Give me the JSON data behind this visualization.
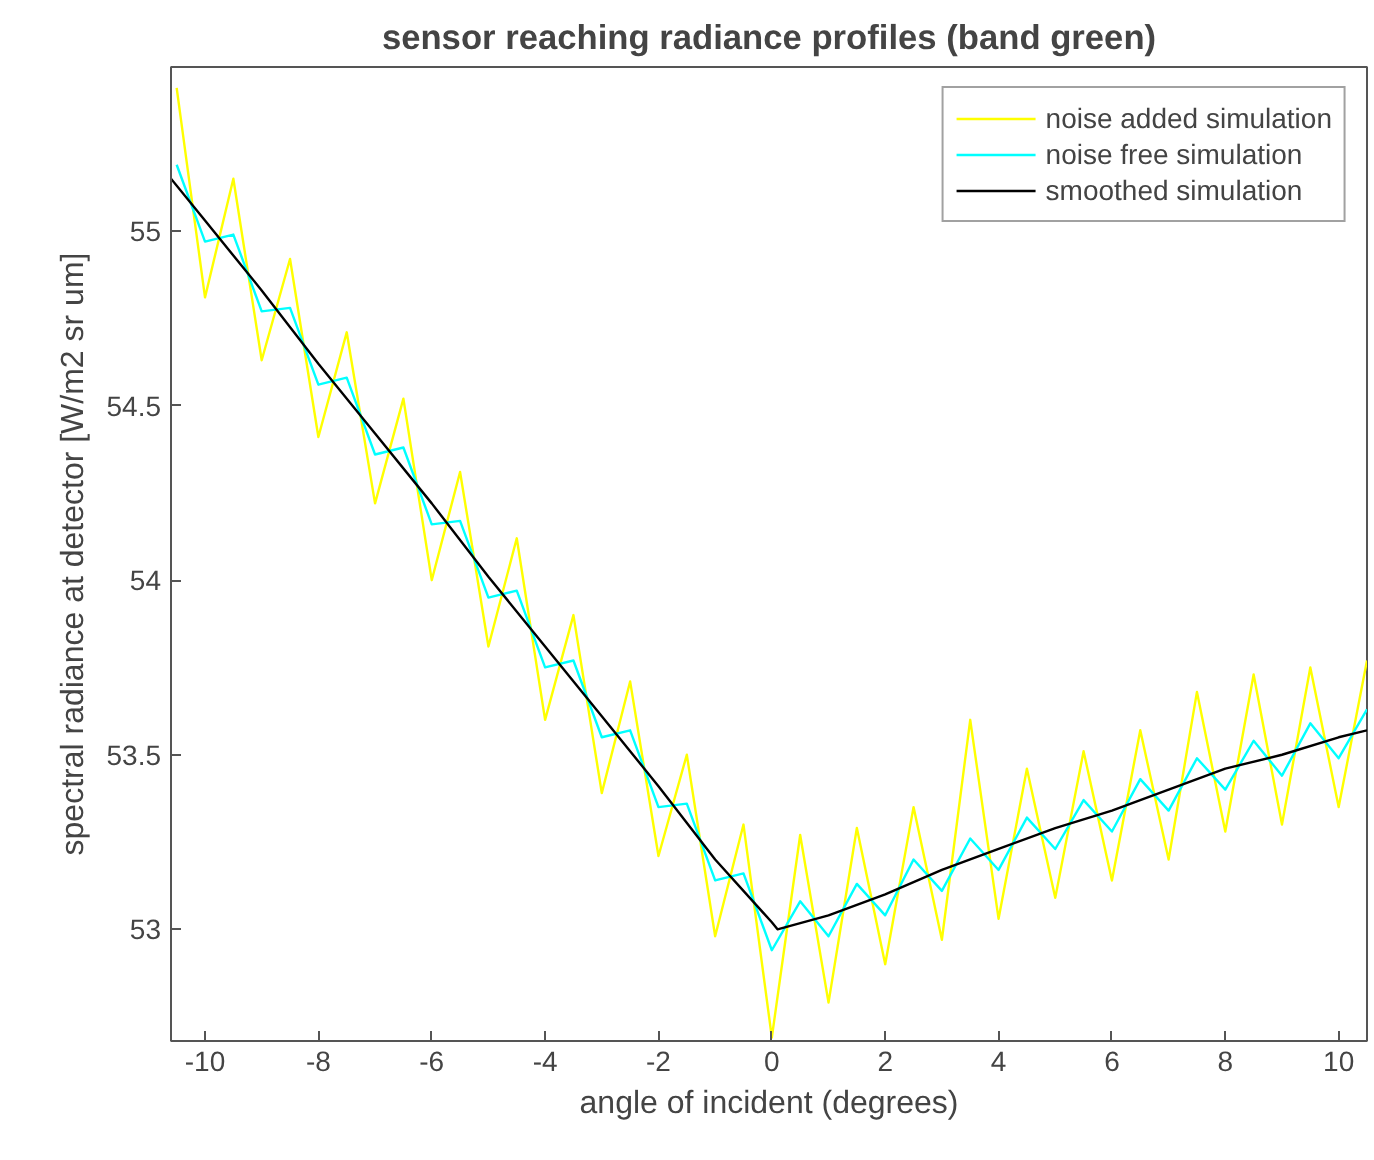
{
  "chart_data": {
    "type": "line",
    "title": "sensor reaching radiance profiles (band green)",
    "xlabel": "angle of incident (degrees)",
    "ylabel": "spectral radiance at detector [W/m2 sr um]",
    "xlim": [
      -10.6,
      10.5
    ],
    "ylim": [
      52.68,
      55.47
    ],
    "xticks": [
      -10,
      -8,
      -6,
      -4,
      -2,
      0,
      2,
      4,
      6,
      8,
      10
    ],
    "yticks": [
      53,
      53.5,
      54,
      54.5,
      55
    ],
    "grid": false,
    "legend": "top right",
    "series": [
      {
        "name": "noise added simulation",
        "color": "#ffff00",
        "x": [
          -10.5,
          -10,
          -9.5,
          -9,
          -8.5,
          -8,
          -7.5,
          -7,
          -6.5,
          -6,
          -5.5,
          -5,
          -4.5,
          -4,
          -3.5,
          -3,
          -2.5,
          -2,
          -1.5,
          -1,
          -0.5,
          0,
          0.5,
          1,
          1.5,
          2,
          2.5,
          3,
          3.5,
          4,
          4.5,
          5,
          5.5,
          6,
          6.5,
          7,
          7.5,
          8,
          8.5,
          9,
          9.5,
          10,
          10.5
        ],
        "values": [
          55.41,
          54.81,
          55.15,
          54.63,
          54.92,
          54.41,
          54.71,
          54.22,
          54.52,
          54.0,
          54.31,
          53.81,
          54.12,
          53.6,
          53.9,
          53.39,
          53.71,
          53.21,
          53.5,
          52.98,
          53.3,
          52.69,
          53.27,
          52.79,
          53.29,
          52.9,
          53.35,
          52.97,
          53.6,
          53.03,
          53.46,
          53.09,
          53.51,
          53.14,
          53.57,
          53.2,
          53.68,
          53.28,
          53.73,
          53.3,
          53.75,
          53.35,
          53.77
        ]
      },
      {
        "name": "noise free simulation",
        "color": "#00ffff",
        "x": [
          -10.5,
          -10,
          -9.5,
          -9,
          -8.5,
          -8,
          -7.5,
          -7,
          -6.5,
          -6,
          -5.5,
          -5,
          -4.5,
          -4,
          -3.5,
          -3,
          -2.5,
          -2,
          -1.5,
          -1,
          -0.5,
          0,
          0.5,
          1,
          1.5,
          2,
          2.5,
          3,
          3.5,
          4,
          4.5,
          5,
          5.5,
          6,
          6.5,
          7,
          7.5,
          8,
          8.5,
          9,
          9.5,
          10,
          10.5
        ],
        "values": [
          55.19,
          54.97,
          54.99,
          54.77,
          54.78,
          54.56,
          54.58,
          54.36,
          54.38,
          54.16,
          54.17,
          53.95,
          53.97,
          53.75,
          53.77,
          53.55,
          53.57,
          53.35,
          53.36,
          53.14,
          53.16,
          52.94,
          53.08,
          52.98,
          53.13,
          53.04,
          53.2,
          53.11,
          53.26,
          53.17,
          53.32,
          53.23,
          53.37,
          53.28,
          53.43,
          53.34,
          53.49,
          53.4,
          53.54,
          53.44,
          53.59,
          53.49,
          53.63
        ]
      },
      {
        "name": "smoothed simulation",
        "color": "#000000",
        "x": [
          -10.6,
          -10,
          -9,
          -8,
          -7,
          -6,
          -5,
          -4,
          -3,
          -2,
          -1,
          0,
          0.1,
          1,
          2,
          3,
          4,
          5,
          6,
          7,
          8,
          9,
          10,
          10.5
        ],
        "values": [
          55.15,
          55.03,
          54.83,
          54.62,
          54.42,
          54.22,
          54.01,
          53.81,
          53.61,
          53.41,
          53.2,
          53.02,
          53.0,
          53.04,
          53.1,
          53.17,
          53.23,
          53.29,
          53.34,
          53.4,
          53.46,
          53.5,
          53.55,
          53.57
        ]
      }
    ]
  }
}
